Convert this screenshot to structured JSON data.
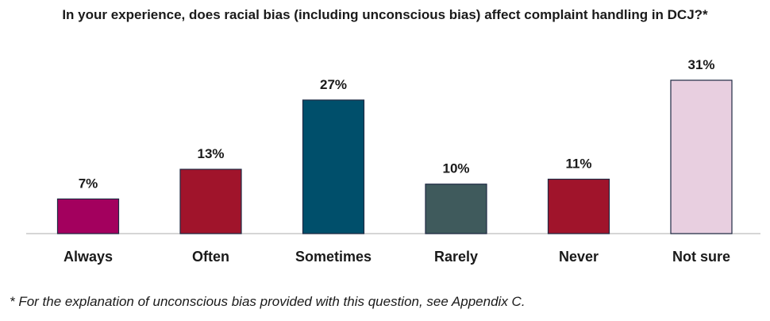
{
  "title": "In your experience, does racial bias (including unconscious bias) affect complaint handling in DCJ?*",
  "footnote": "* For the explanation of unconscious bias provided with this question, see Appendix C.",
  "chart_data": {
    "type": "bar",
    "title": "In your experience, does racial bias (including unconscious bias) affect complaint handling in DCJ?*",
    "categories": [
      "Always",
      "Often",
      "Sometimes",
      "Rarely",
      "Never",
      "Not sure"
    ],
    "values": [
      7,
      13,
      27,
      10,
      11,
      31
    ],
    "data_labels": [
      "7%",
      "13%",
      "27%",
      "10%",
      "11%",
      "31%"
    ],
    "colors": [
      "#a3005e",
      "#a0142b",
      "#004f6b",
      "#3f5a5c",
      "#a0142b",
      "#e8cfe0"
    ],
    "value_unit": "%",
    "xlabel": "",
    "ylabel": "",
    "ylim": [
      0,
      31
    ],
    "grid": false,
    "legend": "none"
  }
}
